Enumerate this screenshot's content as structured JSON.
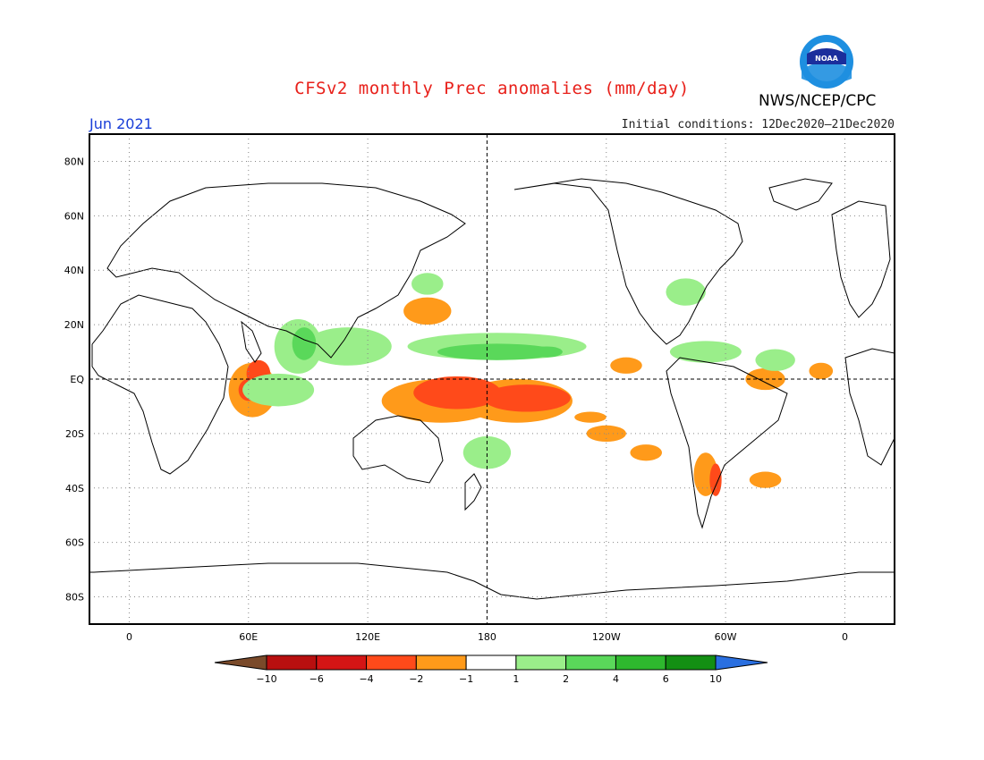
{
  "header": {
    "title": "CFSv2 monthly Prec anomalies (mm/day)",
    "agency": "NWS/NCEP/CPC",
    "logo_text": "NOAA",
    "month": "Jun 2021",
    "initial_conditions": "Initial conditions: 12Dec2020–21Dec2020"
  },
  "map": {
    "lat_labels": [
      "80N",
      "60N",
      "40N",
      "20N",
      "EQ",
      "20S",
      "40S",
      "60S",
      "80S"
    ],
    "lat_values": [
      80,
      60,
      40,
      20,
      0,
      -20,
      -40,
      -60,
      -80
    ],
    "lon_labels": [
      "0",
      "60E",
      "120E",
      "180",
      "120W",
      "60W",
      "0"
    ],
    "lon_values": [
      0,
      60,
      120,
      180,
      240,
      300,
      360
    ],
    "lon_range": [
      -20,
      385
    ],
    "lat_range": [
      -90,
      90
    ]
  },
  "colorbar": {
    "labels": [
      "-10",
      "-6",
      "-4",
      "-2",
      "-1",
      "1",
      "2",
      "4",
      "6",
      "10"
    ],
    "colors": [
      "#7a4a2a",
      "#b80f0f",
      "#d41515",
      "#ff4a1a",
      "#ff9a1a",
      "#ffffff",
      "#9aee8a",
      "#5ad85a",
      "#2eb82e",
      "#138f13",
      "#2a6fe0"
    ]
  },
  "anomalies": [
    {
      "level": -2,
      "color": "#ff9a1a",
      "blobs": [
        [
          157,
          -8,
          30,
          8
        ],
        [
          195,
          -8,
          28,
          8
        ],
        [
          62,
          -4,
          12,
          10
        ],
        [
          150,
          25,
          12,
          5
        ],
        [
          250,
          5,
          8,
          3
        ],
        [
          290,
          -35,
          6,
          8
        ],
        [
          240,
          -20,
          10,
          3
        ],
        [
          260,
          -27,
          8,
          3
        ],
        [
          320,
          -37,
          8,
          3
        ],
        [
          320,
          0,
          10,
          4
        ],
        [
          348,
          3,
          6,
          3
        ],
        [
          232,
          -14,
          8,
          2
        ]
      ]
    },
    {
      "level": -4,
      "color": "#ff4a1a",
      "blobs": [
        [
          165,
          -5,
          22,
          6
        ],
        [
          200,
          -7,
          22,
          5
        ],
        [
          65,
          2,
          6,
          5
        ],
        [
          60,
          -4,
          5,
          4
        ],
        [
          295,
          -37,
          3,
          6
        ]
      ]
    },
    {
      "level": 1,
      "color": "#9aee8a",
      "blobs": [
        [
          185,
          12,
          45,
          5
        ],
        [
          110,
          12,
          22,
          7
        ],
        [
          85,
          12,
          12,
          10
        ],
        [
          75,
          -4,
          18,
          6
        ],
        [
          180,
          -27,
          12,
          6
        ],
        [
          290,
          10,
          18,
          4
        ],
        [
          325,
          7,
          10,
          4
        ],
        [
          150,
          35,
          8,
          4
        ],
        [
          280,
          32,
          10,
          5
        ]
      ]
    },
    {
      "level": 2,
      "color": "#5ad85a",
      "blobs": [
        [
          185,
          10,
          30,
          3
        ],
        [
          88,
          13,
          6,
          6
        ],
        [
          210,
          10,
          8,
          2
        ]
      ]
    }
  ]
}
